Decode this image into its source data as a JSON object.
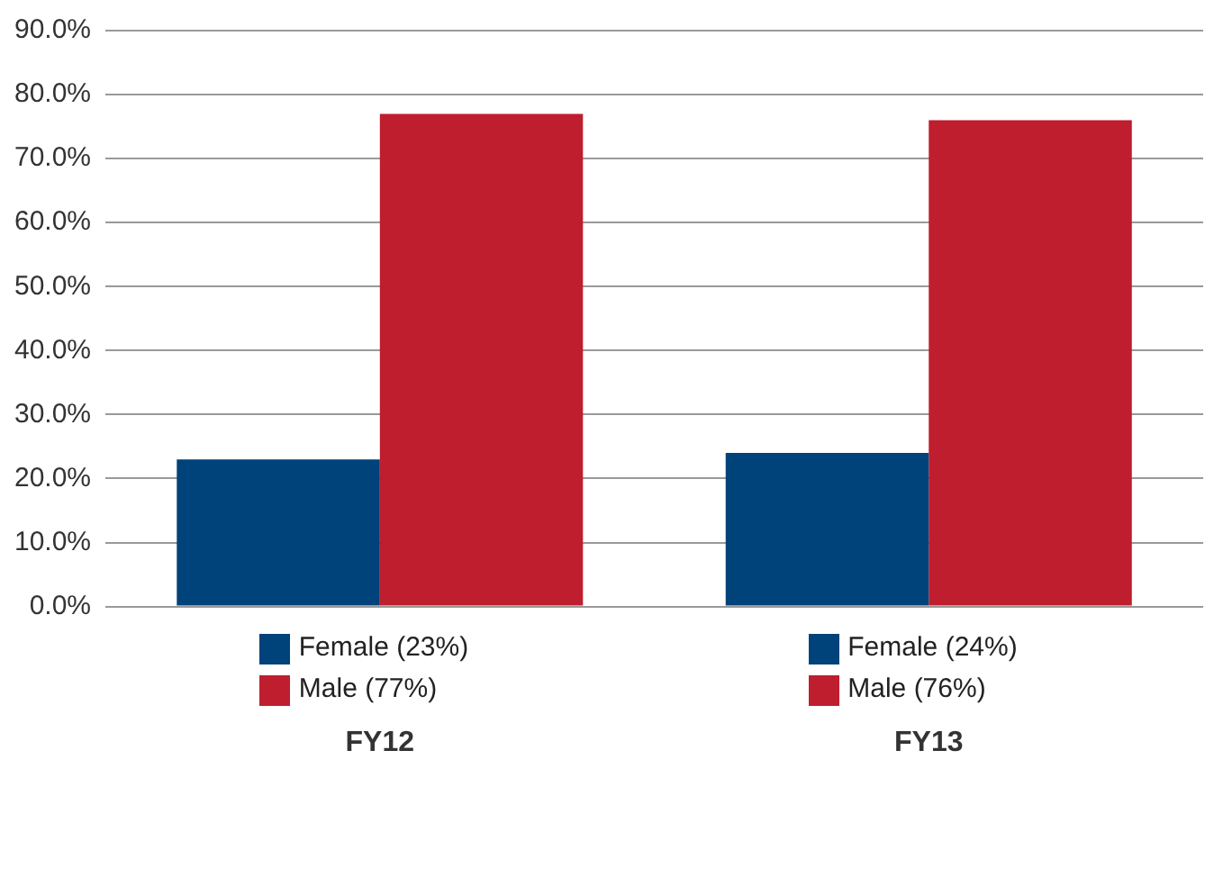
{
  "chart_data": {
    "type": "bar",
    "categories": [
      "FY12",
      "FY13"
    ],
    "series": [
      {
        "color": "#00427a",
        "values": [
          23,
          24
        ],
        "value_labels": [
          "Female (23%)",
          "Female (24%)"
        ]
      },
      {
        "color": "#bf1e2e",
        "values": [
          77,
          76
        ],
        "value_labels": [
          "Male (77%)",
          "Male (76%)"
        ]
      }
    ],
    "ylim": [
      0,
      90
    ],
    "yticks": [
      {
        "value": 0,
        "label": "0.0%"
      },
      {
        "value": 10,
        "label": "10.0%"
      },
      {
        "value": 20,
        "label": "20.0%"
      },
      {
        "value": 30,
        "label": "30.0%"
      },
      {
        "value": 40,
        "label": "40.0%"
      },
      {
        "value": 50,
        "label": "50.0%"
      },
      {
        "value": 60,
        "label": "60.0%"
      },
      {
        "value": 70,
        "label": "70.0%"
      },
      {
        "value": 80,
        "label": "80.0%"
      },
      {
        "value": 90,
        "label": "90.0%"
      }
    ],
    "grid": "y",
    "legend": false
  }
}
